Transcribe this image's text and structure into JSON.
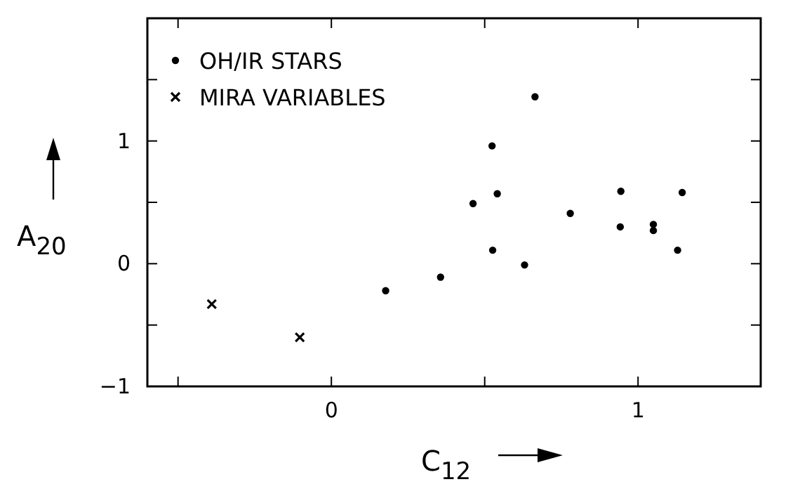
{
  "chart_data": {
    "type": "scatter",
    "xlabel": "C$_{12}$",
    "ylabel": "A$_{20}$",
    "xlim": [
      -0.6,
      1.4
    ],
    "ylim": [
      -1,
      2
    ],
    "xticks": [
      {
        "value": -0.5,
        "label": null
      },
      0,
      {
        "value": 0.5,
        "label": null
      },
      1
    ],
    "yticks": [
      -1,
      {
        "value": -0.5,
        "label": null
      },
      0,
      {
        "value": 0.5,
        "label": null
      },
      1,
      {
        "value": 1.5,
        "label": null
      }
    ],
    "grid": false,
    "legend": "top left",
    "series": [
      {
        "name": "OH/IR STARS",
        "color": "#000000",
        "marker": "circle",
        "x": [
          0.177,
          0.356,
          0.462,
          0.524,
          0.526,
          0.541,
          0.63,
          0.664,
          0.779,
          0.944,
          0.942,
          1.05,
          1.05,
          1.129,
          1.144
        ],
        "values": [
          -0.22,
          -0.11,
          0.49,
          0.96,
          0.11,
          0.57,
          -0.01,
          1.36,
          0.41,
          0.59,
          0.3,
          0.32,
          0.27,
          0.11,
          0.58
        ]
      },
      {
        "name": "MIRA VARIABLES",
        "color": "#000000",
        "marker": "cross",
        "x": [
          -0.39,
          -0.103
        ],
        "values": [
          -0.33,
          -0.6
        ]
      }
    ]
  }
}
